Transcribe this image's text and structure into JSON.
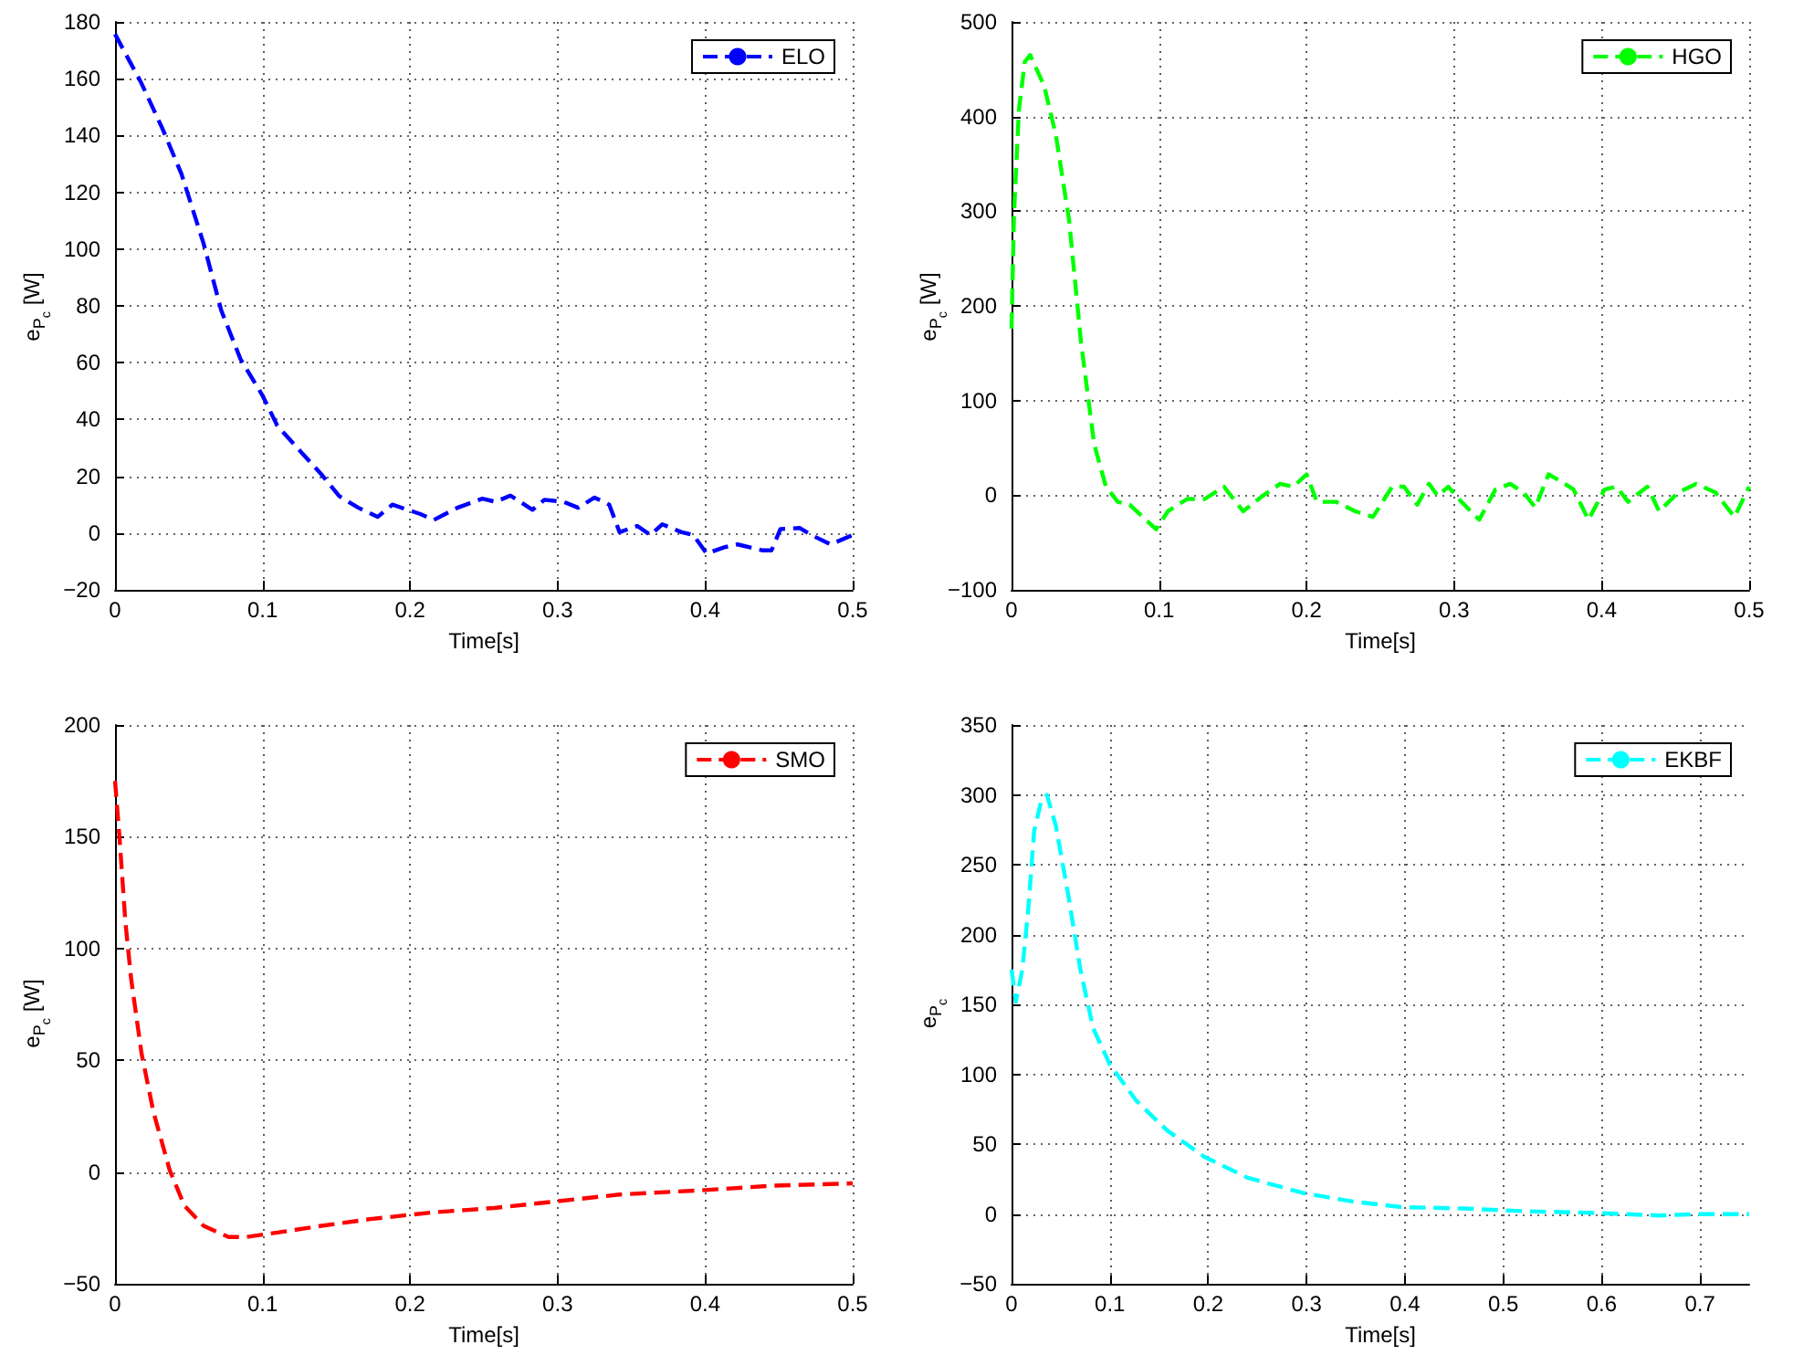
{
  "chart_data": [
    {
      "type": "line",
      "xlabel": "Time[s]",
      "ylabel": "e$_{P}$$_{c}$ [W]",
      "xlim": [
        0,
        0.5
      ],
      "xticks": [
        0,
        0.1,
        0.2,
        0.3,
        0.4,
        0.5
      ],
      "ylim": [
        -20,
        180
      ],
      "yticks": [
        -20,
        0,
        20,
        40,
        60,
        80,
        100,
        120,
        140,
        160,
        180
      ],
      "grid": true,
      "legend": "top right",
      "line_style": "dashed",
      "marker": "none",
      "x": [
        0,
        0.0177,
        0.032,
        0.045,
        0.06,
        0.072,
        0.085,
        0.1,
        0.11,
        0.127,
        0.14,
        0.152,
        0.165,
        0.178,
        0.188,
        0.207,
        0.216,
        0.232,
        0.249,
        0.258,
        0.268,
        0.283,
        0.291,
        0.304,
        0.314,
        0.325,
        0.335,
        0.342,
        0.354,
        0.363,
        0.371,
        0.384,
        0.392,
        0.401,
        0.413,
        0.422,
        0.439,
        0.445,
        0.451,
        0.464,
        0.472,
        0.485,
        0.5
      ],
      "series": [
        {
          "name": "ELO",
          "color": "#0000ff",
          "values": [
            175.7,
            158.6,
            142.6,
            126.5,
            102,
            78.4,
            61.3,
            48.4,
            37.8,
            28,
            20.6,
            13,
            8.9,
            5.7,
            10,
            6.7,
            4.6,
            8.9,
            12.1,
            11,
            13.2,
            8.2,
            11.7,
            11,
            8.9,
            12.5,
            10,
            0.3,
            2.5,
            -0.7,
            3.1,
            0.3,
            -0.7,
            -7.2,
            -5,
            -4,
            -6.1,
            -6.1,
            1.4,
            1.8,
            -0.7,
            -4,
            -0.7
          ]
        }
      ]
    },
    {
      "type": "line",
      "xlabel": "Time[s]",
      "ylabel": "e$_{P}$$_{c}$ [W]",
      "xlim": [
        0,
        0.5
      ],
      "xticks": [
        0,
        0.1,
        0.2,
        0.3,
        0.4,
        0.5
      ],
      "ylim": [
        -100,
        500
      ],
      "yticks": [
        -100,
        0,
        100,
        200,
        300,
        400,
        500
      ],
      "grid": true,
      "legend": "top right",
      "line_style": "dashed",
      "marker": "none",
      "x": [
        0,
        0.0017,
        0.005,
        0.009,
        0.0126,
        0.022,
        0.03,
        0.039,
        0.047,
        0.056,
        0.064,
        0.072,
        0.08,
        0.089,
        0.098,
        0.106,
        0.119,
        0.131,
        0.144,
        0.157,
        0.17,
        0.182,
        0.191,
        0.2,
        0.207,
        0.22,
        0.233,
        0.245,
        0.258,
        0.266,
        0.275,
        0.283,
        0.289,
        0.296,
        0.305,
        0.317,
        0.328,
        0.338,
        0.347,
        0.355,
        0.364,
        0.372,
        0.381,
        0.391,
        0.402,
        0.41,
        0.418,
        0.431,
        0.439,
        0.452,
        0.464,
        0.477,
        0.49,
        0.5
      ],
      "series": [
        {
          "name": "HGO",
          "color": "#00ff00",
          "values": [
            176,
            298,
            407,
            458,
            465,
            433,
            381,
            291,
            163,
            54,
            9,
            -7,
            -10,
            -23,
            -36,
            -17,
            -4,
            -4,
            9,
            -17,
            -1,
            12,
            9,
            22,
            -7,
            -7,
            -17,
            -23,
            9,
            9,
            -10,
            12,
            -1,
            9,
            -7,
            -26,
            6,
            12,
            3,
            -13,
            22,
            15,
            6,
            -26,
            6,
            9,
            -7,
            9,
            -17,
            3,
            12,
            3,
            -23,
            9
          ]
        }
      ]
    },
    {
      "type": "line",
      "xlabel": "Time[s]",
      "ylabel": "e$_{P}$$_{c}$ [W]",
      "xlim": [
        0,
        0.5
      ],
      "xticks": [
        0,
        0.1,
        0.2,
        0.3,
        0.4,
        0.5
      ],
      "ylim": [
        -50,
        200
      ],
      "yticks": [
        -50,
        0,
        50,
        100,
        150,
        200
      ],
      "grid": true,
      "legend": "top right",
      "line_style": "dashed",
      "marker": "none",
      "x": [
        0,
        0.003,
        0.007,
        0.011,
        0.018,
        0.026,
        0.037,
        0.047,
        0.06,
        0.077,
        0.089,
        0.11,
        0.14,
        0.173,
        0.215,
        0.257,
        0.3,
        0.342,
        0.4,
        0.447,
        0.5
      ],
      "series": [
        {
          "name": "SMO",
          "color": "#ff0000",
          "values": [
            175,
            150,
            112,
            86,
            53,
            27,
            1,
            -15,
            -24,
            -29,
            -29,
            -27,
            -24,
            -21,
            -18,
            -16,
            -13,
            -10,
            -8,
            -6,
            -5
          ]
        }
      ]
    },
    {
      "type": "line",
      "xlabel": "Time[s]",
      "ylabel": "e$_{P}$$_{c}$",
      "xlim": [
        0,
        0.75
      ],
      "xticks": [
        0,
        0.1,
        0.2,
        0.3,
        0.4,
        0.5,
        0.6,
        0.7
      ],
      "ylim": [
        -50,
        350
      ],
      "yticks": [
        -50,
        0,
        50,
        100,
        150,
        200,
        250,
        300,
        350
      ],
      "grid": true,
      "legend": "top right",
      "line_style": "dashed",
      "marker": "none",
      "x": [
        0,
        0.0044,
        0.011,
        0.017,
        0.023,
        0.03,
        0.036,
        0.045,
        0.058,
        0.07,
        0.083,
        0.1,
        0.127,
        0.158,
        0.196,
        0.24,
        0.297,
        0.347,
        0.397,
        0.46,
        0.523,
        0.585,
        0.66,
        0.697,
        0.75
      ],
      "series": [
        {
          "name": "EKBF",
          "color": "#00ffff",
          "values": [
            175,
            152,
            175,
            218,
            274,
            295,
            300,
            278,
            227,
            175,
            133,
            107,
            81,
            60,
            41,
            26,
            15,
            9,
            5,
            4,
            2,
            1,
            -1,
            0,
            0
          ]
        }
      ]
    }
  ]
}
